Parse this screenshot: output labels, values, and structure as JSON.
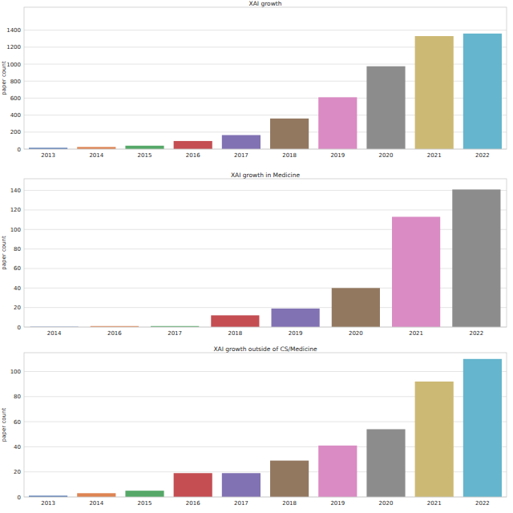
{
  "chart_data": [
    {
      "type": "bar",
      "title": "XAI growth",
      "y_label": "paper count",
      "categories": [
        "2013",
        "2014",
        "2015",
        "2016",
        "2017",
        "2018",
        "2019",
        "2020",
        "2021",
        "2022"
      ],
      "values": [
        15,
        25,
        40,
        95,
        165,
        360,
        610,
        975,
        1330,
        1360
      ],
      "colors": [
        "#4c72b0",
        "#dd8452",
        "#55a868",
        "#c44e52",
        "#8172b3",
        "#937860",
        "#da8bc3",
        "#8c8c8c",
        "#ccb974",
        "#64b5cd"
      ],
      "ylim": [
        0,
        1670
      ],
      "yticks": [
        0,
        200,
        400,
        600,
        800,
        1000,
        1200,
        1400
      ],
      "grid": true
    },
    {
      "type": "bar",
      "title": "XAI growth in Medicine",
      "y_label": "paper count",
      "categories": [
        "2014",
        "2016",
        "2017",
        "2018",
        "2019",
        "2020",
        "2021",
        "2022"
      ],
      "values": [
        0.3,
        1,
        1,
        12,
        19,
        40,
        113,
        141
      ],
      "colors": [
        "#4c72b0",
        "#dd8452",
        "#55a868",
        "#c44e52",
        "#8172b3",
        "#937860",
        "#da8bc3",
        "#8c8c8c"
      ],
      "ylim": [
        0,
        152
      ],
      "yticks": [
        0,
        20,
        40,
        60,
        80,
        100,
        120,
        140
      ],
      "grid": true
    },
    {
      "type": "bar",
      "title": "XAI growth outside of CS/Medicine",
      "y_label": "paper count",
      "categories": [
        "2013",
        "2014",
        "2015",
        "2016",
        "2017",
        "2018",
        "2019",
        "2020",
        "2021",
        "2022"
      ],
      "values": [
        1,
        3,
        5,
        19,
        19,
        29,
        41,
        54,
        92,
        110
      ],
      "colors": [
        "#4c72b0",
        "#dd8452",
        "#55a868",
        "#c44e52",
        "#8172b3",
        "#937860",
        "#da8bc3",
        "#8c8c8c",
        "#ccb974",
        "#64b5cd"
      ],
      "ylim": [
        0,
        115
      ],
      "yticks": [
        0,
        20,
        40,
        60,
        80,
        100
      ],
      "grid": true
    }
  ]
}
